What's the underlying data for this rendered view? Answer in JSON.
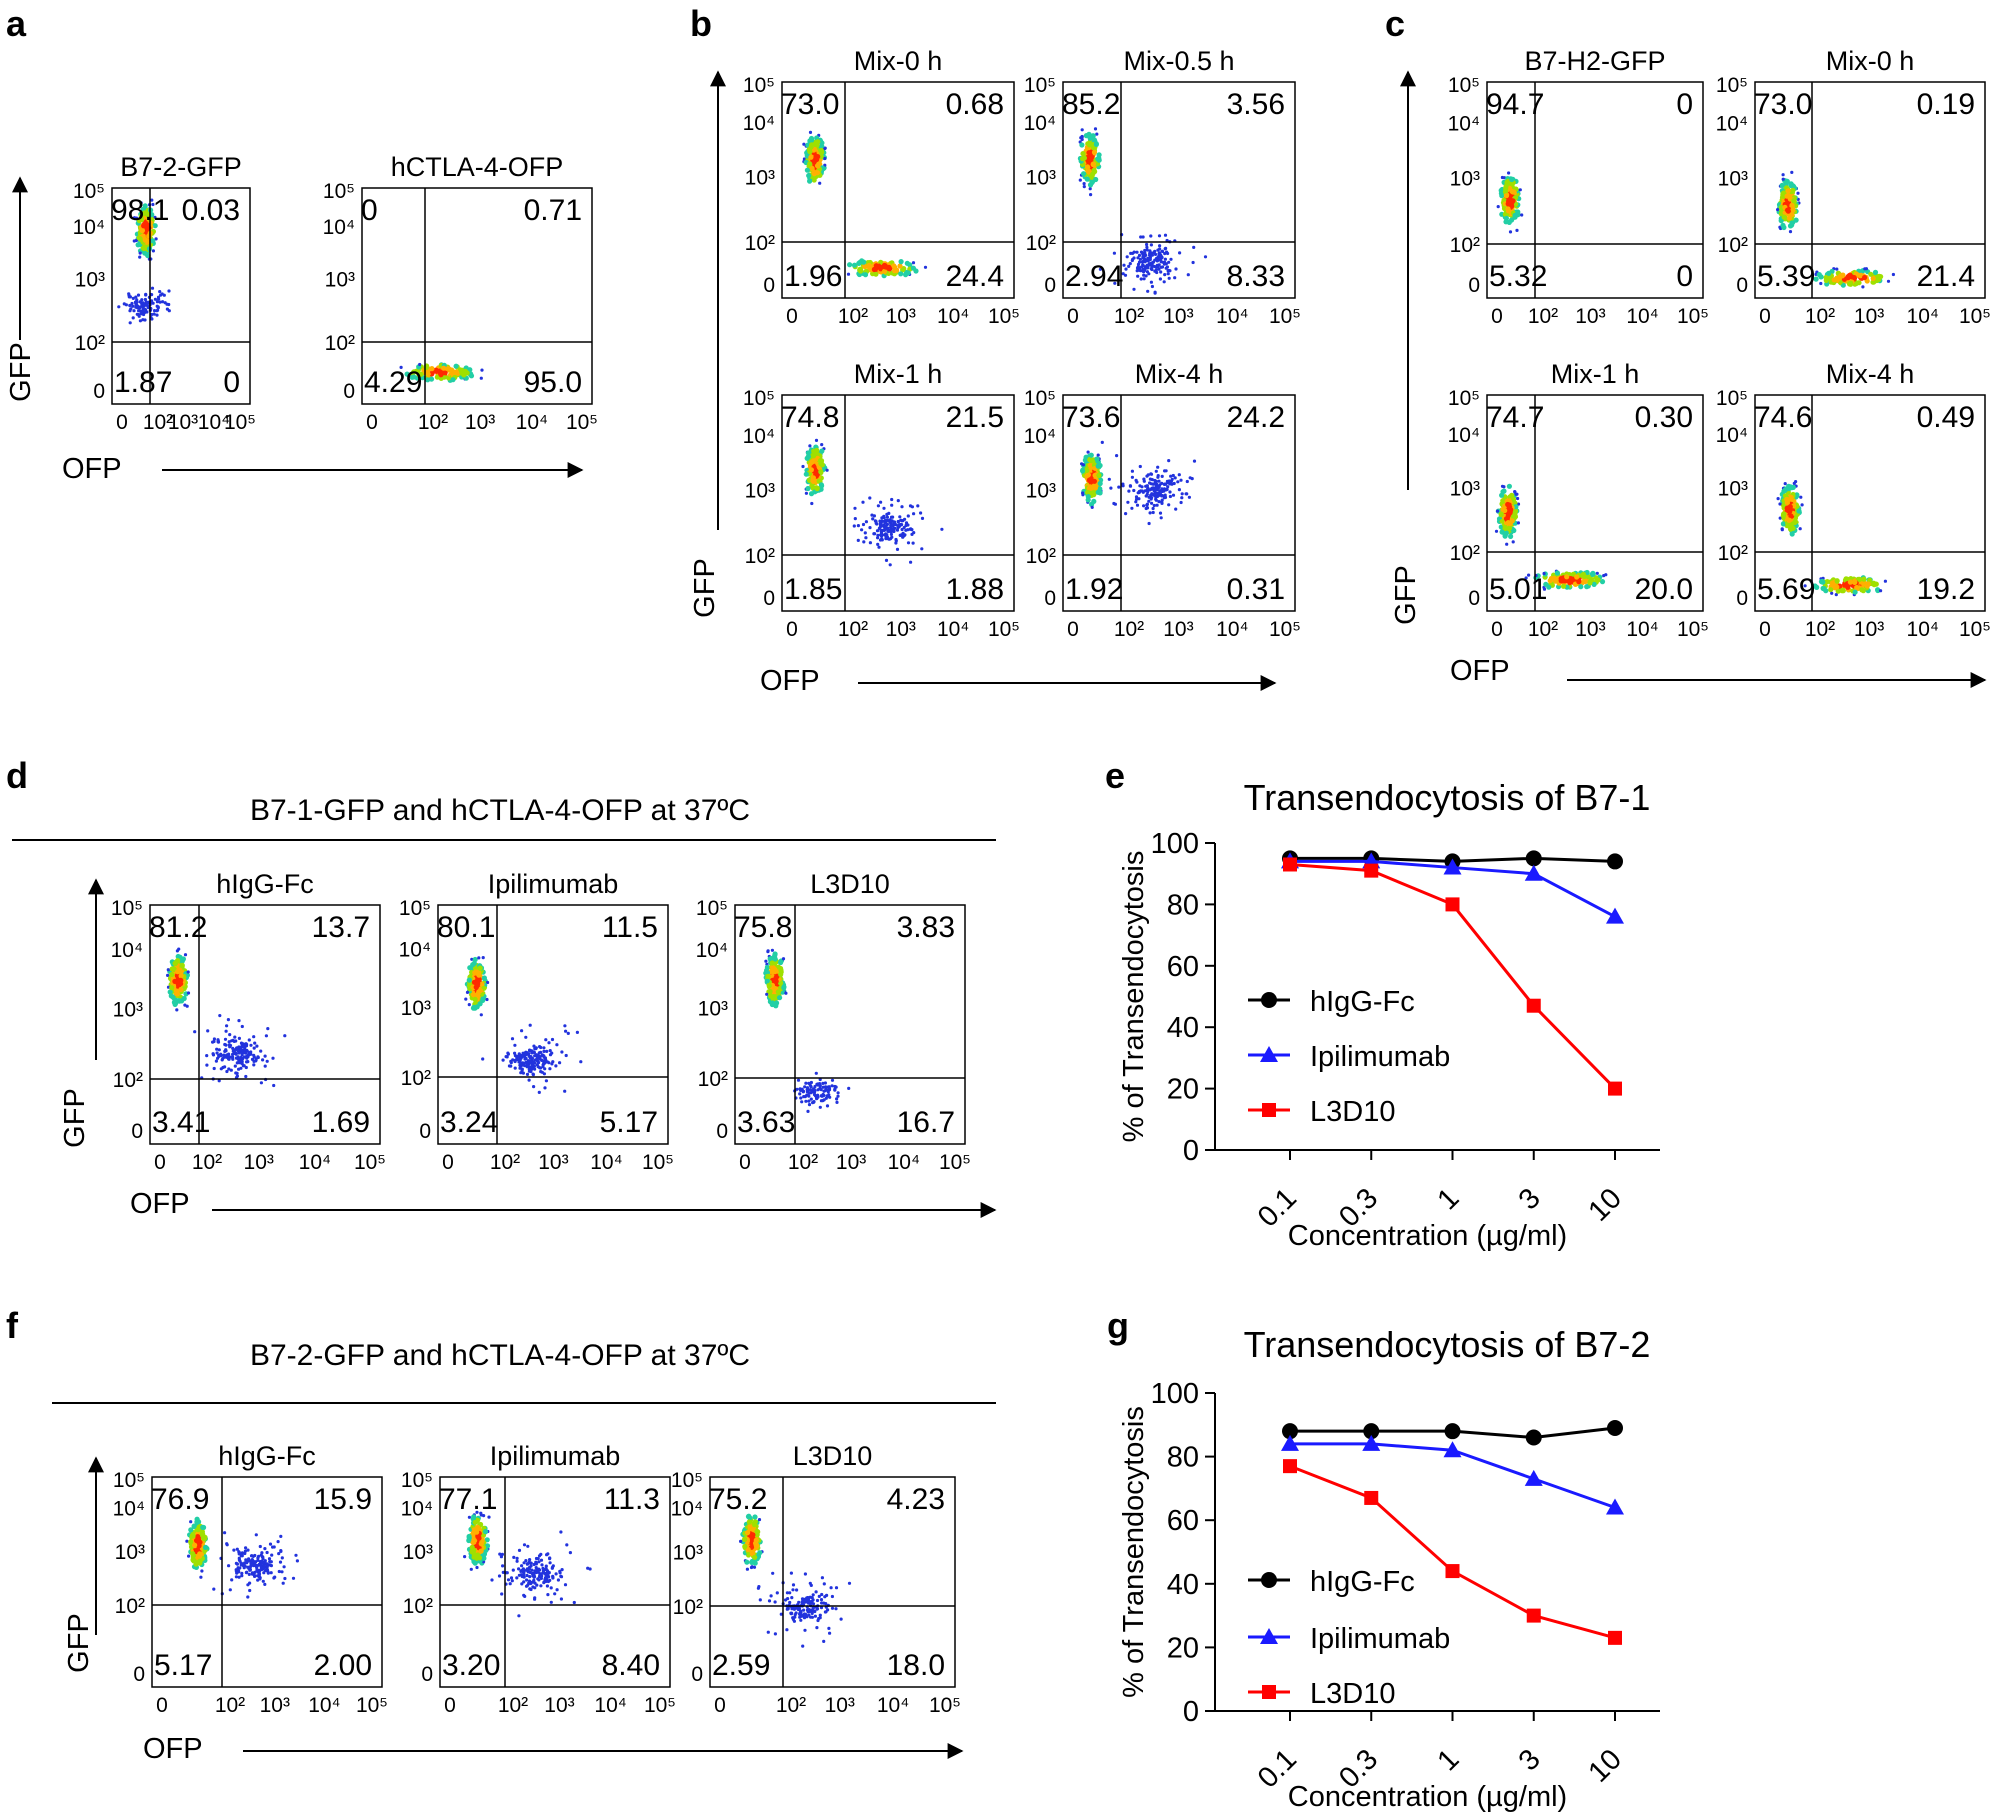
{
  "figure": {
    "panel_letters": [
      "a",
      "b",
      "c",
      "d",
      "e",
      "f",
      "g"
    ],
    "flow_axes": {
      "x_label": "OFP",
      "y_label": "GFP",
      "ticks_x": [
        "0",
        "10²",
        "10³",
        "10⁴",
        "10⁵"
      ],
      "ticks_y": [
        "0",
        "10²",
        "10³",
        "10⁴",
        "10⁵"
      ]
    },
    "panel_d_heading": "B7-1-GFP and hCTLA-4-OFP at 37ºC",
    "panel_f_heading": "B7-2-GFP and hCTLA-4-OFP at 37ºC"
  },
  "plots": [
    {
      "id": "a1",
      "panel": "a",
      "title": "B7-2-GFP",
      "q": {
        "ul": "98.1",
        "ur": "0.03",
        "ll": "1.87",
        "lr": "0"
      }
    },
    {
      "id": "a2",
      "panel": "a",
      "title": "hCTLA-4-OFP",
      "q": {
        "ul": "0",
        "ur": "0.71",
        "ll": "4.29",
        "lr": "95.0"
      }
    },
    {
      "id": "b1",
      "panel": "b",
      "title": "Mix-0 h",
      "q": {
        "ul": "73.0",
        "ur": "0.68",
        "ll": "1.96",
        "lr": "24.4"
      }
    },
    {
      "id": "b2",
      "panel": "b",
      "title": "Mix-0.5 h",
      "q": {
        "ul": "85.2",
        "ur": "3.56",
        "ll": "2.94",
        "lr": "8.33"
      }
    },
    {
      "id": "b3",
      "panel": "b",
      "title": "Mix-1 h",
      "q": {
        "ul": "74.8",
        "ur": "21.5",
        "ll": "1.85",
        "lr": "1.88"
      }
    },
    {
      "id": "b4",
      "panel": "b",
      "title": "Mix-4 h",
      "q": {
        "ul": "73.6",
        "ur": "24.2",
        "ll": "1.92",
        "lr": "0.31"
      }
    },
    {
      "id": "c1",
      "panel": "c",
      "title": "B7-H2-GFP",
      "q": {
        "ul": "94.7",
        "ur": "0",
        "ll": "5.32",
        "lr": "0"
      }
    },
    {
      "id": "c2",
      "panel": "c",
      "title": "Mix-0 h",
      "q": {
        "ul": "73.0",
        "ur": "0.19",
        "ll": "5.39",
        "lr": "21.4"
      }
    },
    {
      "id": "c3",
      "panel": "c",
      "title": "Mix-1 h",
      "q": {
        "ul": "74.7",
        "ur": "0.30",
        "ll": "5.01",
        "lr": "20.0"
      }
    },
    {
      "id": "c4",
      "panel": "c",
      "title": "Mix-4 h",
      "q": {
        "ul": "74.6",
        "ur": "0.49",
        "ll": "5.69",
        "lr": "19.2"
      }
    },
    {
      "id": "d1",
      "panel": "d",
      "title": "hIgG-Fc",
      "q": {
        "ul": "81.2",
        "ur": "13.7",
        "ll": "3.41",
        "lr": "1.69"
      }
    },
    {
      "id": "d2",
      "panel": "d",
      "title": "Ipilimumab",
      "q": {
        "ul": "80.1",
        "ur": "11.5",
        "ll": "3.24",
        "lr": "5.17"
      }
    },
    {
      "id": "d3",
      "panel": "d",
      "title": "L3D10",
      "q": {
        "ul": "75.8",
        "ur": "3.83",
        "ll": "3.63",
        "lr": "16.7"
      }
    },
    {
      "id": "f1",
      "panel": "f",
      "title": "hIgG-Fc",
      "q": {
        "ul": "76.9",
        "ur": "15.9",
        "ll": "5.17",
        "lr": "2.00"
      }
    },
    {
      "id": "f2",
      "panel": "f",
      "title": "Ipilimumab",
      "q": {
        "ul": "77.1",
        "ur": "11.3",
        "ll": "3.20",
        "lr": "8.40"
      }
    },
    {
      "id": "f3",
      "panel": "f",
      "title": "L3D10",
      "q": {
        "ul": "75.2",
        "ur": "4.23",
        "ll": "2.59",
        "lr": "18.0"
      }
    }
  ],
  "chart_data": [
    {
      "panel": "e",
      "type": "line",
      "title": "Transendocytosis of B7-1",
      "xlabel": "Concentration (µg/ml)",
      "ylabel": "% of Transendocytosis",
      "categories": [
        "0.1",
        "0.3",
        "1",
        "3",
        "10"
      ],
      "ylim": [
        0,
        100
      ],
      "yticks": [
        "0",
        "20",
        "40",
        "60",
        "80",
        "100"
      ],
      "legend": "center-left",
      "series": [
        {
          "name": "hIgG-Fc",
          "color": "#000000",
          "marker": "circle",
          "values": [
            95,
            95,
            94,
            95,
            94
          ]
        },
        {
          "name": "Ipilimumab",
          "color": "#1a1aff",
          "marker": "triangle",
          "values": [
            94,
            94,
            92,
            90,
            76
          ]
        },
        {
          "name": "L3D10",
          "color": "#ff0000",
          "marker": "square",
          "values": [
            93,
            91,
            80,
            47,
            20
          ]
        }
      ]
    },
    {
      "panel": "g",
      "type": "line",
      "title": "Transendocytosis of B7-2",
      "xlabel": "Concentration (µg/ml)",
      "ylabel": "% of Transendocytosis",
      "categories": [
        "0.1",
        "0.3",
        "1",
        "3",
        "10"
      ],
      "ylim": [
        0,
        100
      ],
      "yticks": [
        "0",
        "20",
        "40",
        "60",
        "80",
        "100"
      ],
      "legend": "center-left",
      "series": [
        {
          "name": "hIgG-Fc",
          "color": "#000000",
          "marker": "circle",
          "values": [
            88,
            88,
            88,
            86,
            89
          ]
        },
        {
          "name": "Ipilimumab",
          "color": "#1a1aff",
          "marker": "triangle",
          "values": [
            84,
            84,
            82,
            73,
            64
          ]
        },
        {
          "name": "L3D10",
          "color": "#ff0000",
          "marker": "square",
          "values": [
            77,
            67,
            44,
            30,
            23
          ]
        }
      ]
    }
  ]
}
